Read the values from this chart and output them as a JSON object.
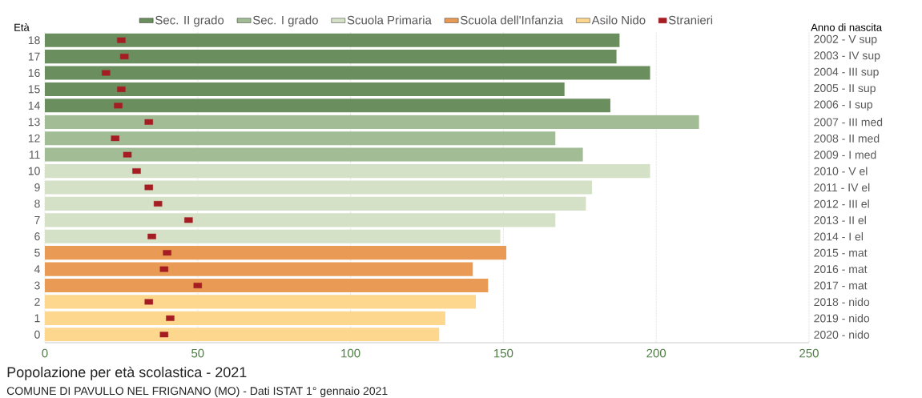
{
  "chart_data": {
    "type": "bar",
    "orientation": "horizontal",
    "title": "Popolazione per età scolastica - 2021",
    "ylabel": "Età",
    "y2label": "Anno di nascita",
    "annotations": [
      "COMUNE DI PAVULLO NEL FRIGNANO (MO) - Dati ISTAT 1° gennaio 2021"
    ],
    "categories": [
      "18",
      "17",
      "16",
      "15",
      "14",
      "13",
      "12",
      "11",
      "10",
      "9",
      "8",
      "7",
      "6",
      "5",
      "4",
      "3",
      "2",
      "1",
      "0"
    ],
    "y2_categories": [
      "2002 - V sup",
      "2003 - IV sup",
      "2004 - III sup",
      "2005 - II sup",
      "2006 - I sup",
      "2007 - III med",
      "2008 - II med",
      "2009 - I med",
      "2010 - V el",
      "2011 - IV el",
      "2012 - III el",
      "2013 - II el",
      "2014 - I el",
      "2015 - mat",
      "2016 - mat",
      "2017 - mat",
      "2018 - nido",
      "2019 - nido",
      "2020 - nido"
    ],
    "series": [
      {
        "name": "Sec. II grado",
        "color": "#6b8e5e",
        "values": [
          188,
          187,
          198,
          170,
          185,
          null,
          null,
          null,
          null,
          null,
          null,
          null,
          null,
          null,
          null,
          null,
          null,
          null,
          null
        ]
      },
      {
        "name": "Sec. I grado",
        "color": "#a2bd96",
        "values": [
          null,
          null,
          null,
          null,
          null,
          214,
          167,
          176,
          null,
          null,
          null,
          null,
          null,
          null,
          null,
          null,
          null,
          null,
          null
        ]
      },
      {
        "name": "Scuola Primaria",
        "color": "#d4e1c6",
        "values": [
          null,
          null,
          null,
          null,
          null,
          null,
          null,
          null,
          198,
          179,
          177,
          167,
          149,
          null,
          null,
          null,
          null,
          null,
          null
        ]
      },
      {
        "name": "Scuola dell'Infanzia",
        "color": "#e99b55",
        "values": [
          null,
          null,
          null,
          null,
          null,
          null,
          null,
          null,
          null,
          null,
          null,
          null,
          null,
          151,
          140,
          145,
          null,
          null,
          null
        ]
      },
      {
        "name": "Asilo Nido",
        "color": "#fed78f",
        "values": [
          null,
          null,
          null,
          null,
          null,
          null,
          null,
          null,
          null,
          null,
          null,
          null,
          null,
          null,
          null,
          null,
          141,
          131,
          129
        ]
      },
      {
        "name": "Stranieri",
        "type": "scatter",
        "marker": "square",
        "color": "#a51d23",
        "values": [
          25,
          26,
          20,
          25,
          24,
          34,
          23,
          27,
          30,
          34,
          37,
          47,
          35,
          40,
          39,
          50,
          34,
          41,
          39
        ]
      }
    ],
    "xlim": [
      0,
      250
    ],
    "xticks": [
      0,
      50,
      100,
      150,
      200,
      250
    ],
    "grid": "x",
    "legend": "top"
  }
}
